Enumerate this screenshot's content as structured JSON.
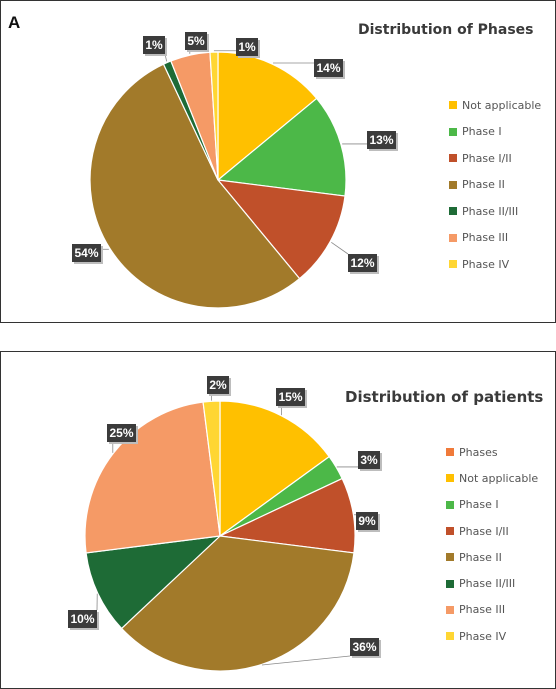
{
  "panel_letter": "A",
  "chart_data": [
    {
      "type": "pie",
      "title": "Distribution of Phases",
      "legend_position": "right",
      "categories": [
        "Not applicable",
        "Phase I",
        "Phase I/II",
        "Phase II",
        "Phase II/III",
        "Phase III",
        "Phase IV"
      ],
      "values": [
        14,
        13,
        12,
        54,
        1,
        5,
        1
      ],
      "data_labels": [
        "14%",
        "13%",
        "12%",
        "54%",
        "1%",
        "5%",
        "1%"
      ],
      "colors": [
        "#FFC000",
        "#4CB848",
        "#C0502A",
        "#A27A2A",
        "#1E6B36",
        "#F59A66",
        "#FFD633"
      ]
    },
    {
      "type": "pie",
      "title": "Distribution of patients",
      "legend_position": "right",
      "legend_entries": [
        "Phases",
        "Not applicable",
        "Phase I",
        "Phase I/II",
        "Phase II",
        "Phase II/III",
        "Phase III",
        "Phase IV"
      ],
      "legend_colors": [
        "#F07A3A",
        "#FFC000",
        "#4CB848",
        "#C0502A",
        "#A27A2A",
        "#1E6B36",
        "#F59A66",
        "#FFD633"
      ],
      "categories": [
        "Not applicable",
        "Phase I",
        "Phase I/II",
        "Phase II",
        "Phase II/III",
        "Phase III",
        "Phase IV"
      ],
      "values": [
        15,
        3,
        9,
        36,
        10,
        25,
        2
      ],
      "data_labels": [
        "15%",
        "3%",
        "9%",
        "36%",
        "10%",
        "25%",
        "2%"
      ],
      "colors": [
        "#FFC000",
        "#4CB848",
        "#C0502A",
        "#A27A2A",
        "#1E6B36",
        "#F59A66",
        "#FFD633"
      ]
    }
  ]
}
